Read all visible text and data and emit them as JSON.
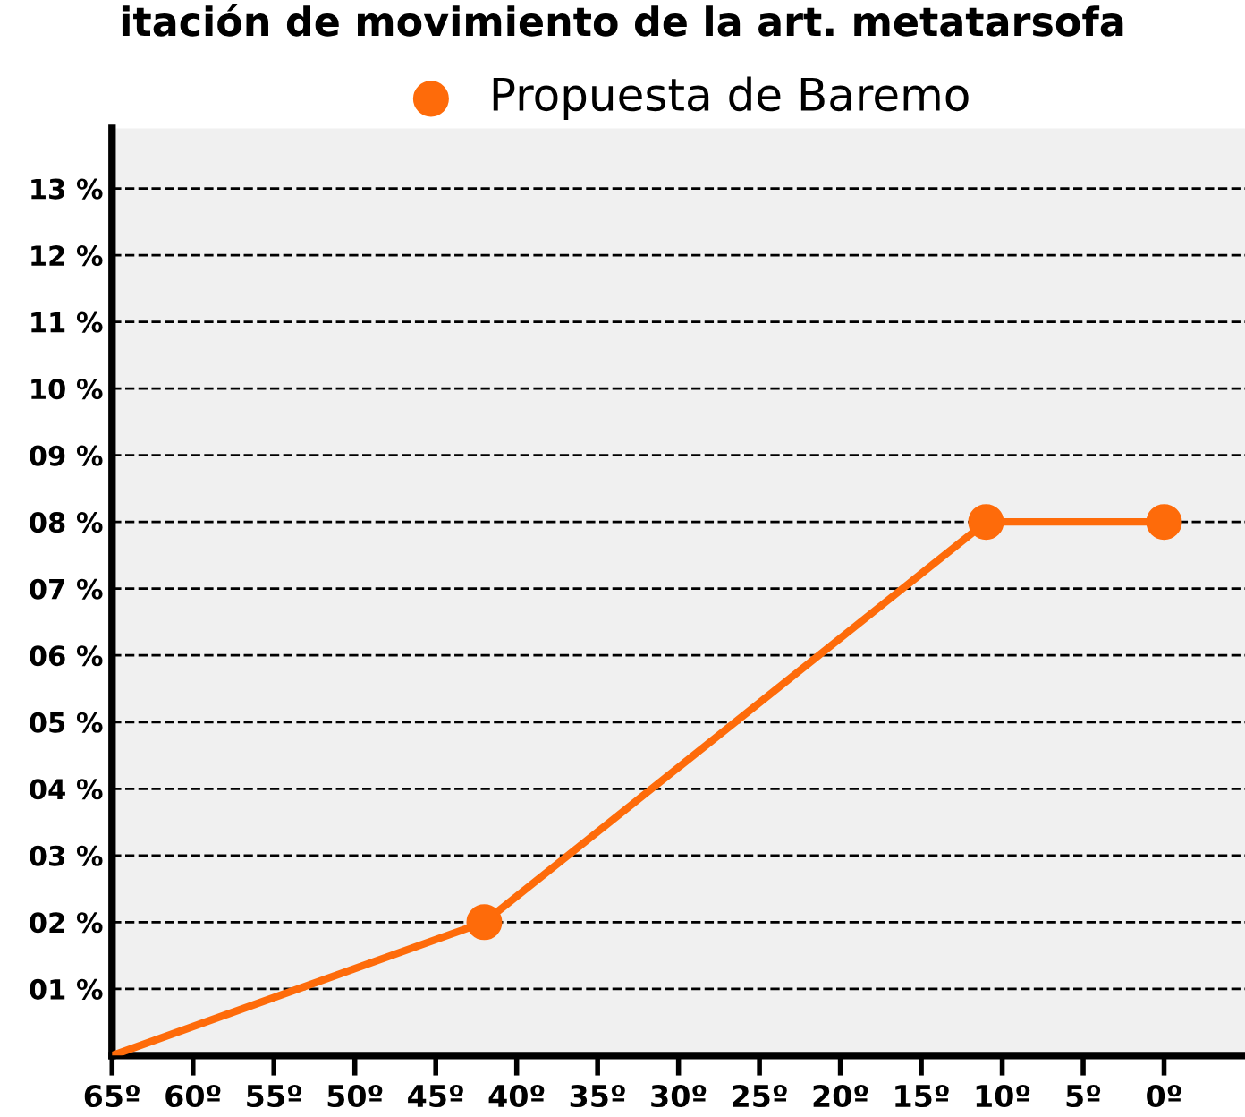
{
  "chart_data": {
    "type": "line",
    "title": "itación de movimiento de la art. metatarsofa",
    "xlim": [
      65,
      -5
    ],
    "xticks": [
      {
        "value": 65,
        "label": "65º"
      },
      {
        "value": 60,
        "label": "60º"
      },
      {
        "value": 55,
        "label": "55º"
      },
      {
        "value": 50,
        "label": "50º"
      },
      {
        "value": 45,
        "label": "45º"
      },
      {
        "value": 40,
        "label": "40º"
      },
      {
        "value": 35,
        "label": "35º"
      },
      {
        "value": 30,
        "label": "30º"
      },
      {
        "value": 25,
        "label": "25º"
      },
      {
        "value": 20,
        "label": "20º"
      },
      {
        "value": 15,
        "label": "15º"
      },
      {
        "value": 10,
        "label": "10º"
      },
      {
        "value": 5,
        "label": "5º"
      },
      {
        "value": 0,
        "label": "0º"
      }
    ],
    "ylim": [
      0,
      13.9
    ],
    "yticks": [
      {
        "value": 1,
        "label": "01 %"
      },
      {
        "value": 2,
        "label": "02 %"
      },
      {
        "value": 3,
        "label": "03 %"
      },
      {
        "value": 4,
        "label": "04 %"
      },
      {
        "value": 5,
        "label": "05 %"
      },
      {
        "value": 6,
        "label": "06 %"
      },
      {
        "value": 7,
        "label": "07 %"
      },
      {
        "value": 8,
        "label": "08 %"
      },
      {
        "value": 9,
        "label": "09 %"
      },
      {
        "value": 10,
        "label": "10 %"
      },
      {
        "value": 11,
        "label": "11 %"
      },
      {
        "value": 12,
        "label": "12 %"
      },
      {
        "value": 13,
        "label": "13 %"
      }
    ],
    "grid": "y",
    "legend": "top",
    "line_style": "solid",
    "series": [
      {
        "color": "#fe6b0a",
        "x": [
          65,
          42,
          11,
          0
        ],
        "values": [
          0,
          2,
          8,
          8
        ]
      },
      {
        "type": "scatter",
        "name": "Propuesta de Baremo",
        "color": "#fe6b0a",
        "marker": "circle",
        "x": [
          42,
          11,
          0
        ],
        "values": [
          2,
          8,
          8
        ]
      }
    ]
  }
}
